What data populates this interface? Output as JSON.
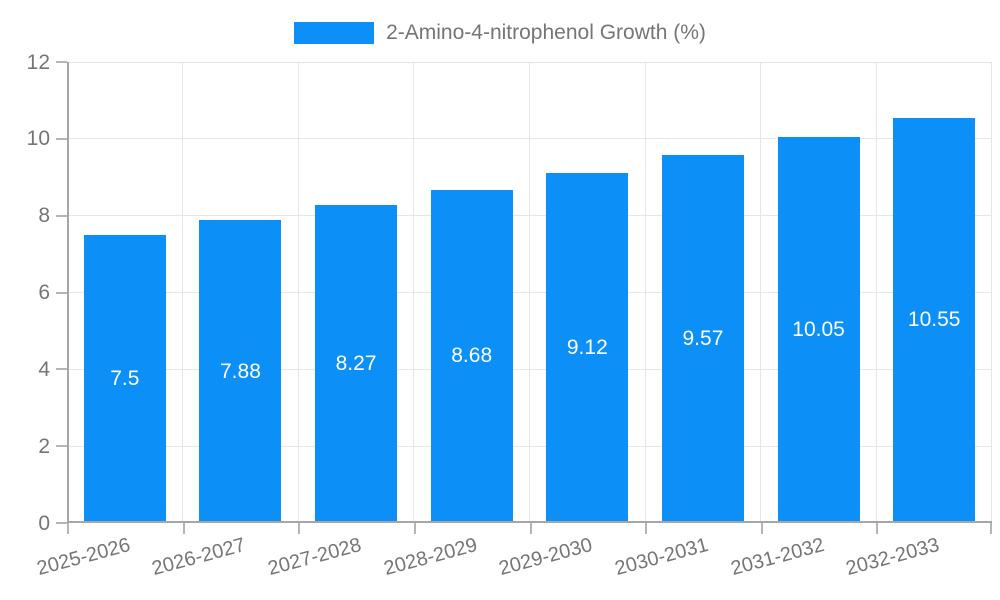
{
  "chart_data": {
    "type": "bar",
    "title": "2-Amino-4-nitrophenol Growth (%)",
    "categories": [
      "2025-2026",
      "2026-2027",
      "2027-2028",
      "2028-2029",
      "2029-2030",
      "2030-2031",
      "2031-2032",
      "2032-2033"
    ],
    "values": [
      7.5,
      7.88,
      8.27,
      8.68,
      9.12,
      9.57,
      10.05,
      10.55
    ],
    "value_labels": [
      "7.5",
      "7.88",
      "8.27",
      "8.68",
      "9.12",
      "9.57",
      "10.05",
      "10.55"
    ],
    "xlabel": "",
    "ylabel": "",
    "ylim": [
      0,
      12
    ],
    "y_ticks": [
      0,
      2,
      4,
      6,
      8,
      10,
      12
    ],
    "y_tick_labels": [
      "0",
      "2",
      "4",
      "6",
      "8",
      "10",
      "12"
    ],
    "grid": true,
    "legend_position": "top-center"
  },
  "colors": {
    "bar": "#0c90f8",
    "text": "#757575",
    "value_label": "#ffffff",
    "grid": "#e6e6e6",
    "axis": "#a6a6a6",
    "tick": "#b5b5b5",
    "background": "#ffffff"
  }
}
